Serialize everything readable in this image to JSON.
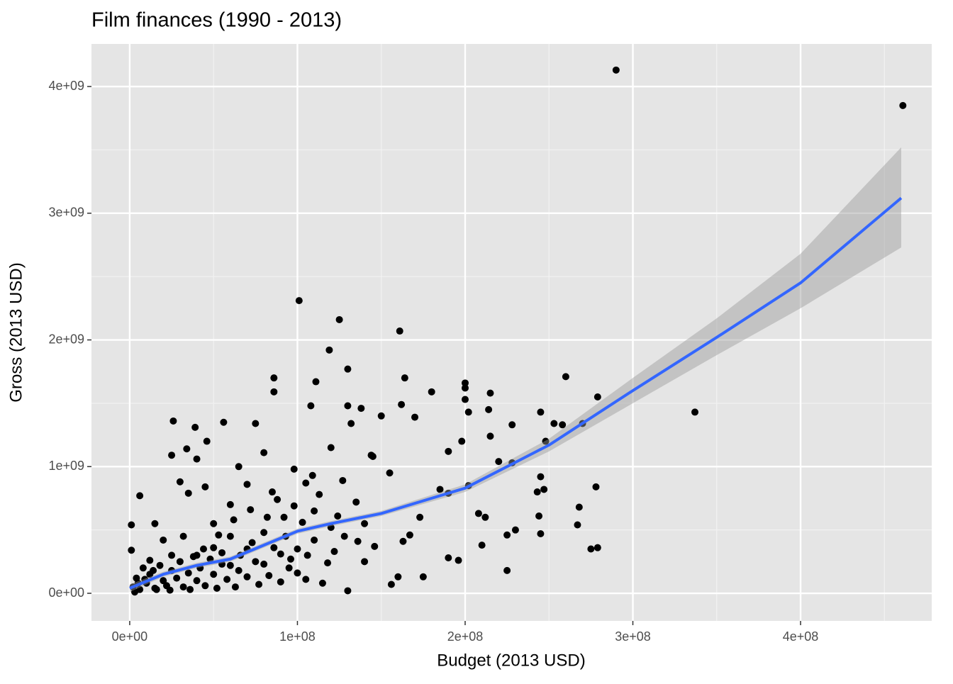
{
  "chart_data": {
    "type": "scatter",
    "title": "Film finances (1990 - 2013)",
    "x_label": "Budget (2013 USD)",
    "y_label": "Gross (2013 USD)",
    "xlim": [
      -22800000.0,
      478200000.0
    ],
    "ylim": [
      -218000000.0,
      4336000000.0
    ],
    "xticks": [
      {
        "value": 0,
        "label": "0e+00"
      },
      {
        "value": 100000000.0,
        "label": "1e+08"
      },
      {
        "value": 200000000.0,
        "label": "2e+08"
      },
      {
        "value": 300000000.0,
        "label": "3e+08"
      },
      {
        "value": 400000000.0,
        "label": "4e+08"
      }
    ],
    "yticks": [
      {
        "value": 0,
        "label": "0e+00"
      },
      {
        "value": 1000000000.0,
        "label": "1e+09"
      },
      {
        "value": 2000000000.0,
        "label": "2e+09"
      },
      {
        "value": 3000000000.0,
        "label": "3e+09"
      },
      {
        "value": 4000000000.0,
        "label": "4e+09"
      }
    ],
    "xminor": [
      50000000.0,
      150000000.0,
      250000000.0,
      350000000.0,
      450000000.0
    ],
    "yminor": [
      500000000.0,
      1500000000.0,
      2500000000.0,
      3500000000.0
    ],
    "grid": true,
    "color": "#000000",
    "x": [
      290000000.0,
      461000000.0,
      337000000.0,
      101000000.0,
      125000000.0,
      161000000.0,
      119000000.0,
      200000000.0,
      200000000.0,
      260000000.0,
      279000000.0,
      278000000.0,
      279000000.0,
      275000000.0,
      268000000.0,
      267000000.0,
      225000000.0,
      86000000.0,
      86000000.0,
      111000000.0,
      130000000.0,
      164000000.0,
      180000000.0,
      215000000.0,
      245000000.0,
      253000000.0,
      258000000.0,
      270000000.0,
      248000000.0,
      228000000.0,
      214000000.0,
      215000000.0,
      200000000.0,
      202000000.0,
      26000000.0,
      39000000.0,
      56000000.0,
      75000000.0,
      34000000.0,
      25000000.0,
      46000000.0,
      40000000.0,
      98000000.0,
      108000000.0,
      150000000.0,
      162000000.0,
      130000000.0,
      138000000.0,
      170000000.0,
      132000000.0,
      144000000.0,
      190000000.0,
      198000000.0,
      220000000.0,
      228000000.0,
      245000000.0,
      247000000.0,
      243000000.0,
      244000000.0,
      245000000.0,
      225000000.0,
      230000000.0,
      210000000.0,
      208000000.0,
      212000000.0,
      202000000.0,
      190000000.0,
      185000000.0,
      173000000.0,
      175000000.0,
      160000000.0,
      167000000.0,
      156000000.0,
      190000000.0,
      196000000.0,
      163000000.0,
      155000000.0,
      145000000.0,
      120000000.0,
      109000000.0,
      127000000.0,
      135000000.0,
      140000000.0,
      128000000.0,
      122000000.0,
      130000000.0,
      115000000.0,
      105000000.0,
      95000000.0,
      100000000.0,
      92000000.0,
      85000000.0,
      80000000.0,
      70000000.0,
      65000000.0,
      60000000.0,
      50000000.0,
      45000000.0,
      35000000.0,
      30000000.0,
      6000000.0,
      15000000.0,
      1000000.0,
      1000000.0,
      20000000.0,
      12000000.0,
      25000000.0,
      32000000.0,
      40000000.0,
      50000000.0,
      60000000.0,
      70000000.0,
      80000000.0,
      90000000.0,
      110000000.0,
      120000000.0,
      140000000.0,
      65000000.0,
      75000000.0,
      55000000.0,
      2000000.0,
      4000000.0,
      6000000.0,
      8000000.0,
      10000000.0,
      12000000.0,
      15000000.0,
      18000000.0,
      20000000.0,
      22000000.0,
      25000000.0,
      28000000.0,
      30000000.0,
      32000000.0,
      35000000.0,
      38000000.0,
      40000000.0,
      42000000.0,
      45000000.0,
      48000000.0,
      50000000.0,
      52000000.0,
      55000000.0,
      58000000.0,
      60000000.0,
      63000000.0,
      66000000.0,
      70000000.0,
      73000000.0,
      77000000.0,
      80000000.0,
      83000000.0,
      86000000.0,
      90000000.0,
      93000000.0,
      96000000.0,
      100000000.0,
      103000000.0,
      106000000.0,
      110000000.0,
      3000000.0,
      5000000.0,
      9000000.0,
      14000000.0,
      16000000.0,
      24000000.0,
      36000000.0,
      44000000.0,
      53000000.0,
      62000000.0,
      72000000.0,
      82000000.0,
      88000000.0,
      98000000.0,
      105000000.0,
      113000000.0,
      118000000.0,
      124000000.0,
      136000000.0,
      146000000.0
    ],
    "values": [
      4130000000.0,
      3850000000.0,
      1430000000.0,
      2310000000.0,
      2160000000.0,
      2070000000.0,
      1920000000.0,
      1660000000.0,
      1620000000.0,
      1710000000.0,
      1550000000.0,
      840000000.0,
      360000000.0,
      350000000.0,
      680000000.0,
      540000000.0,
      180000000.0,
      1700000000.0,
      1590000000.0,
      1670000000.0,
      1770000000.0,
      1700000000.0,
      1590000000.0,
      1580000000.0,
      1430000000.0,
      1340000000.0,
      1330000000.0,
      1340000000.0,
      1200000000.0,
      1330000000.0,
      1450000000.0,
      1240000000.0,
      1530000000.0,
      1430000000.0,
      1360000000.0,
      1310000000.0,
      1350000000.0,
      1340000000.0,
      1140000000.0,
      1090000000.0,
      1200000000.0,
      1060000000.0,
      980000000.0,
      1480000000.0,
      1400000000.0,
      1490000000.0,
      1480000000.0,
      1460000000.0,
      1390000000.0,
      1340000000.0,
      1090000000.0,
      1120000000.0,
      1200000000.0,
      1040000000.0,
      1030000000.0,
      920000000.0,
      820000000.0,
      800000000.0,
      610000000.0,
      470000000.0,
      460000000.0,
      500000000.0,
      380000000.0,
      630000000.0,
      600000000.0,
      850000000.0,
      790000000.0,
      820000000.0,
      600000000.0,
      130000000.0,
      130000000.0,
      460000000.0,
      70000000.0,
      280000000.0,
      260000000.0,
      410000000.0,
      950000000.0,
      1080000000.0,
      1150000000.0,
      930000000.0,
      890000000.0,
      720000000.0,
      550000000.0,
      450000000.0,
      330000000.0,
      20000000.0,
      80000000.0,
      110000000.0,
      200000000.0,
      350000000.0,
      600000000.0,
      800000000.0,
      1110000000.0,
      860000000.0,
      1000000000.0,
      700000000.0,
      550000000.0,
      840000000.0,
      790000000.0,
      880000000.0,
      770000000.0,
      550000000.0,
      540000000.0,
      340000000.0,
      420000000.0,
      260000000.0,
      300000000.0,
      450000000.0,
      300000000.0,
      360000000.0,
      450000000.0,
      350000000.0,
      480000000.0,
      310000000.0,
      650000000.0,
      520000000.0,
      250000000.0,
      180000000.0,
      250000000.0,
      230000000.0,
      50000000.0,
      120000000.0,
      30000000.0,
      200000000.0,
      80000000.0,
      150000000.0,
      40000000.0,
      220000000.0,
      100000000.0,
      60000000.0,
      180000000.0,
      120000000.0,
      250000000.0,
      50000000.0,
      160000000.0,
      290000000.0,
      100000000.0,
      200000000.0,
      60000000.0,
      270000000.0,
      150000000.0,
      40000000.0,
      320000000.0,
      110000000.0,
      220000000.0,
      50000000.0,
      300000000.0,
      130000000.0,
      400000000.0,
      70000000.0,
      230000000.0,
      140000000.0,
      360000000.0,
      90000000.0,
      450000000.0,
      270000000.0,
      160000000.0,
      560000000.0,
      300000000.0,
      420000000.0,
      10000000.0,
      80000000.0,
      110000000.0,
      180000000.0,
      30000000.0,
      25000000.0,
      30000000.0,
      350000000.0,
      460000000.0,
      580000000.0,
      660000000.0,
      600000000.0,
      740000000.0,
      690000000.0,
      870000000.0,
      780000000.0,
      240000000.0,
      610000000.0,
      410000000.0,
      370000000.0
    ],
    "smooth": {
      "color": "#3366ff",
      "x": [
        0,
        20000000.0,
        40000000.0,
        60000000.0,
        80000000.0,
        100000000.0,
        120000000.0,
        150000000.0,
        200000000.0,
        250000000.0,
        300000000.0,
        350000000.0,
        400000000.0,
        460000000.0
      ],
      "values": [
        40000000.0,
        150000000.0,
        220000000.0,
        270000000.0,
        380000000.0,
        490000000.0,
        550000000.0,
        630000000.0,
        830000000.0,
        1170000000.0,
        1600000000.0,
        2020000000.0,
        2450000000.0,
        3120000000.0
      ],
      "lower": [
        10000000.0,
        130000000.0,
        200000000.0,
        250000000.0,
        360000000.0,
        470000000.0,
        530000000.0,
        610000000.0,
        800000000.0,
        1120000000.0,
        1500000000.0,
        1880000000.0,
        2250000000.0,
        2730000000.0
      ],
      "upper": [
        70000000.0,
        170000000.0,
        240000000.0,
        290000000.0,
        400000000.0,
        510000000.0,
        570000000.0,
        650000000.0,
        860000000.0,
        1220000000.0,
        1700000000.0,
        2170000000.0,
        2680000000.0,
        3520000000.0
      ]
    }
  }
}
